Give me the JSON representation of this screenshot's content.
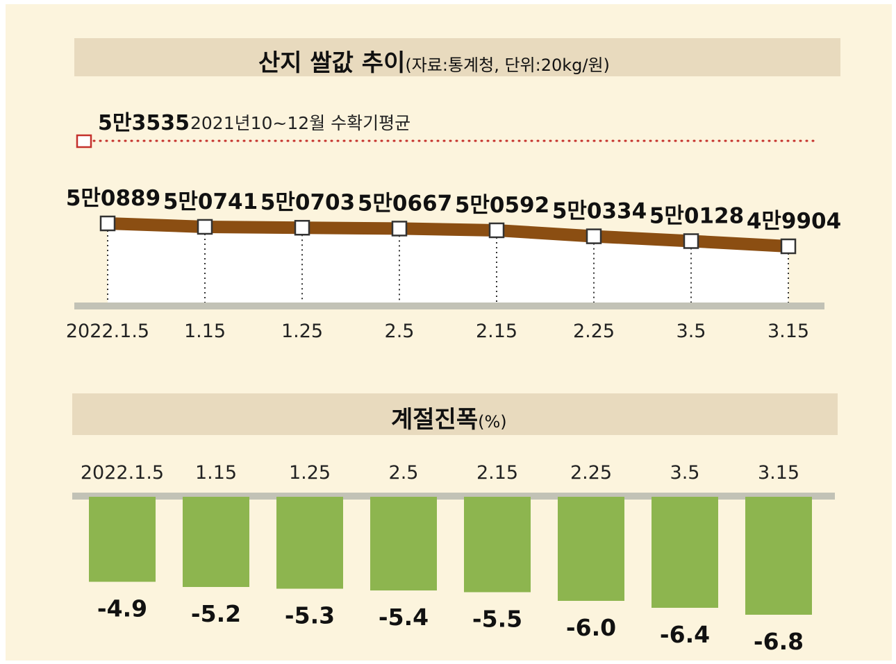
{
  "page": {
    "colors": {
      "background": "#fcf4dd",
      "header_band": "#e8dabe",
      "line": "#8b4e12",
      "reference_line": "#c4302b",
      "bar": "#8db54f",
      "baseline": "#c2c2b6"
    }
  },
  "chart_data": [
    {
      "type": "line",
      "title": "산지 쌀값 추이",
      "subtitle": "(자료:통계청, 단위:20kg/원)",
      "x": [
        "2022.1.5",
        "1.15",
        "1.25",
        "2.5",
        "2.15",
        "2.25",
        "3.5",
        "3.15"
      ],
      "series": [
        {
          "values": [
            50889,
            50741,
            50703,
            50667,
            50592,
            50334,
            50128,
            49904
          ],
          "data_labels": [
            "5만0889",
            "5만0741",
            "5만0703",
            "5만0667",
            "5만0592",
            "5만0334",
            "5만0128",
            "4만9904"
          ]
        }
      ],
      "reference_line": {
        "value": 53535,
        "value_label": "5만3535",
        "label": "2021년10~12월 수확기평균",
        "style": "dotted"
      },
      "grid": false
    },
    {
      "type": "bar",
      "title": "계절진폭",
      "subtitle": "(%)",
      "categories": [
        "2022.1.5",
        "1.15",
        "1.25",
        "2.5",
        "2.15",
        "2.25",
        "3.5",
        "3.15"
      ],
      "values": [
        -4.9,
        -5.2,
        -5.3,
        -5.4,
        -5.5,
        -6.0,
        -6.4,
        -6.8
      ],
      "data_labels": [
        "-4.9",
        "-5.2",
        "-5.3",
        "-5.4",
        "-5.5",
        "-6.0",
        "-6.4",
        "-6.8"
      ],
      "grid": false
    }
  ]
}
